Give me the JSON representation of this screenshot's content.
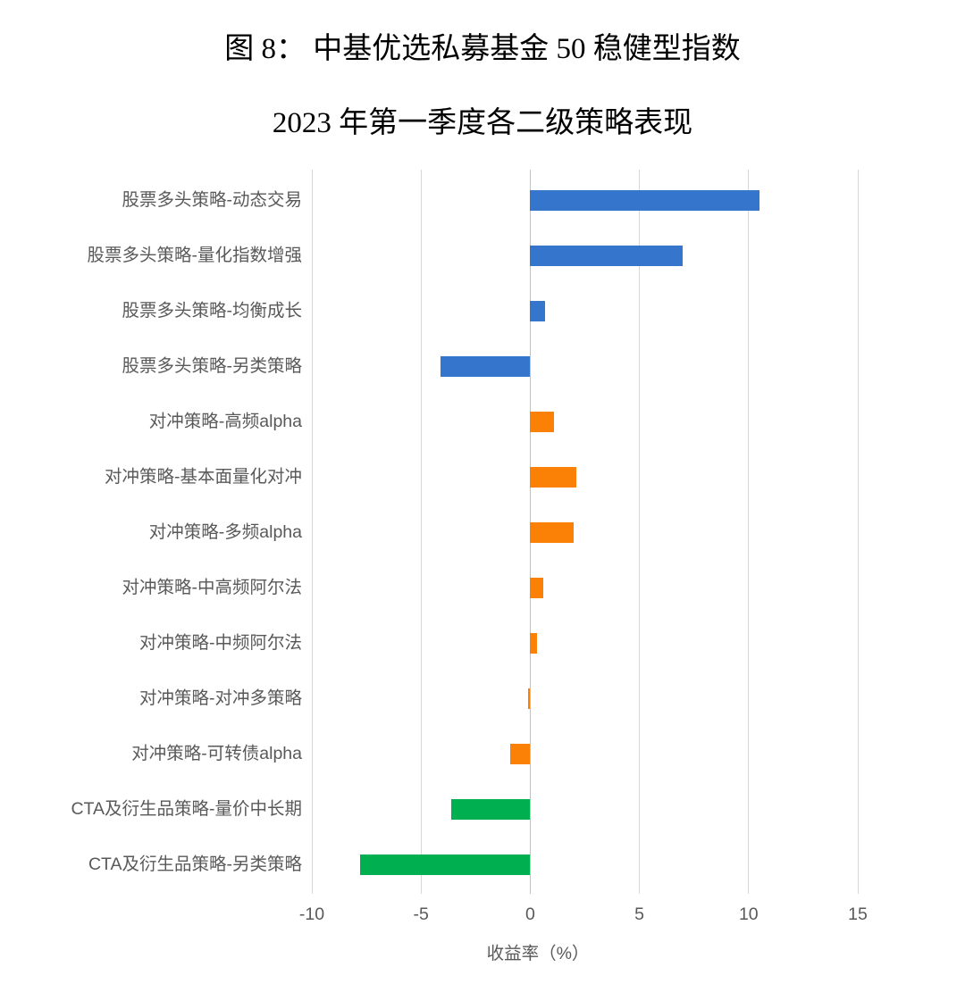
{
  "figure": {
    "title_line1": "图 8： 中基优选私募基金 50 稳健型指数",
    "title_line2": "2023 年第一季度各二级策略表现"
  },
  "chart_data": {
    "type": "bar",
    "orientation": "horizontal",
    "title": "图 8： 中基优选私募基金 50 稳健型指数 2023 年第一季度各二级策略表现",
    "xlabel": "收益率（%）",
    "ylabel": "",
    "xlim": [
      -10,
      15
    ],
    "xticks": [
      -10,
      -5,
      0,
      5,
      10,
      15
    ],
    "xtick_labels": [
      "-10",
      "-5",
      "0",
      "5",
      "10",
      "15"
    ],
    "grid": true,
    "legend": "none",
    "categories": [
      "股票多头策略-动态交易",
      "股票多头策略-量化指数增强",
      "股票多头策略-均衡成长",
      "股票多头策略-另类策略",
      "对冲策略-高频alpha",
      "对冲策略-基本面量化对冲",
      "对冲策略-多频alpha",
      "对冲策略-中高频阿尔法",
      "对冲策略-中频阿尔法",
      "对冲策略-对冲多策略",
      "对冲策略-可转债alpha",
      "CTA及衍生品策略-量价中长期",
      "CTA及衍生品策略-另类策略"
    ],
    "values": [
      10.5,
      7.0,
      0.7,
      -4.1,
      1.1,
      2.1,
      2.0,
      0.6,
      0.3,
      -0.1,
      -0.9,
      -3.6,
      -7.8
    ],
    "bar_colors": [
      "#3575CB",
      "#3575CB",
      "#3575CB",
      "#3575CB",
      "#FB8106",
      "#FB8106",
      "#FB8106",
      "#FB8106",
      "#FB8106",
      "#FB8106",
      "#FB8106",
      "#00B050",
      "#00B050"
    ],
    "groups": [
      {
        "name": "股票多头策略",
        "color": "#3575CB"
      },
      {
        "name": "对冲策略",
        "color": "#FB8106"
      },
      {
        "name": "CTA及衍生品策略",
        "color": "#00B050"
      }
    ]
  },
  "colors": {
    "gridline": "#D6D6D6",
    "zero_line": "#C2C2C2",
    "axis_text": "#595959",
    "title_text": "#000000",
    "background": "#FFFFFF"
  }
}
